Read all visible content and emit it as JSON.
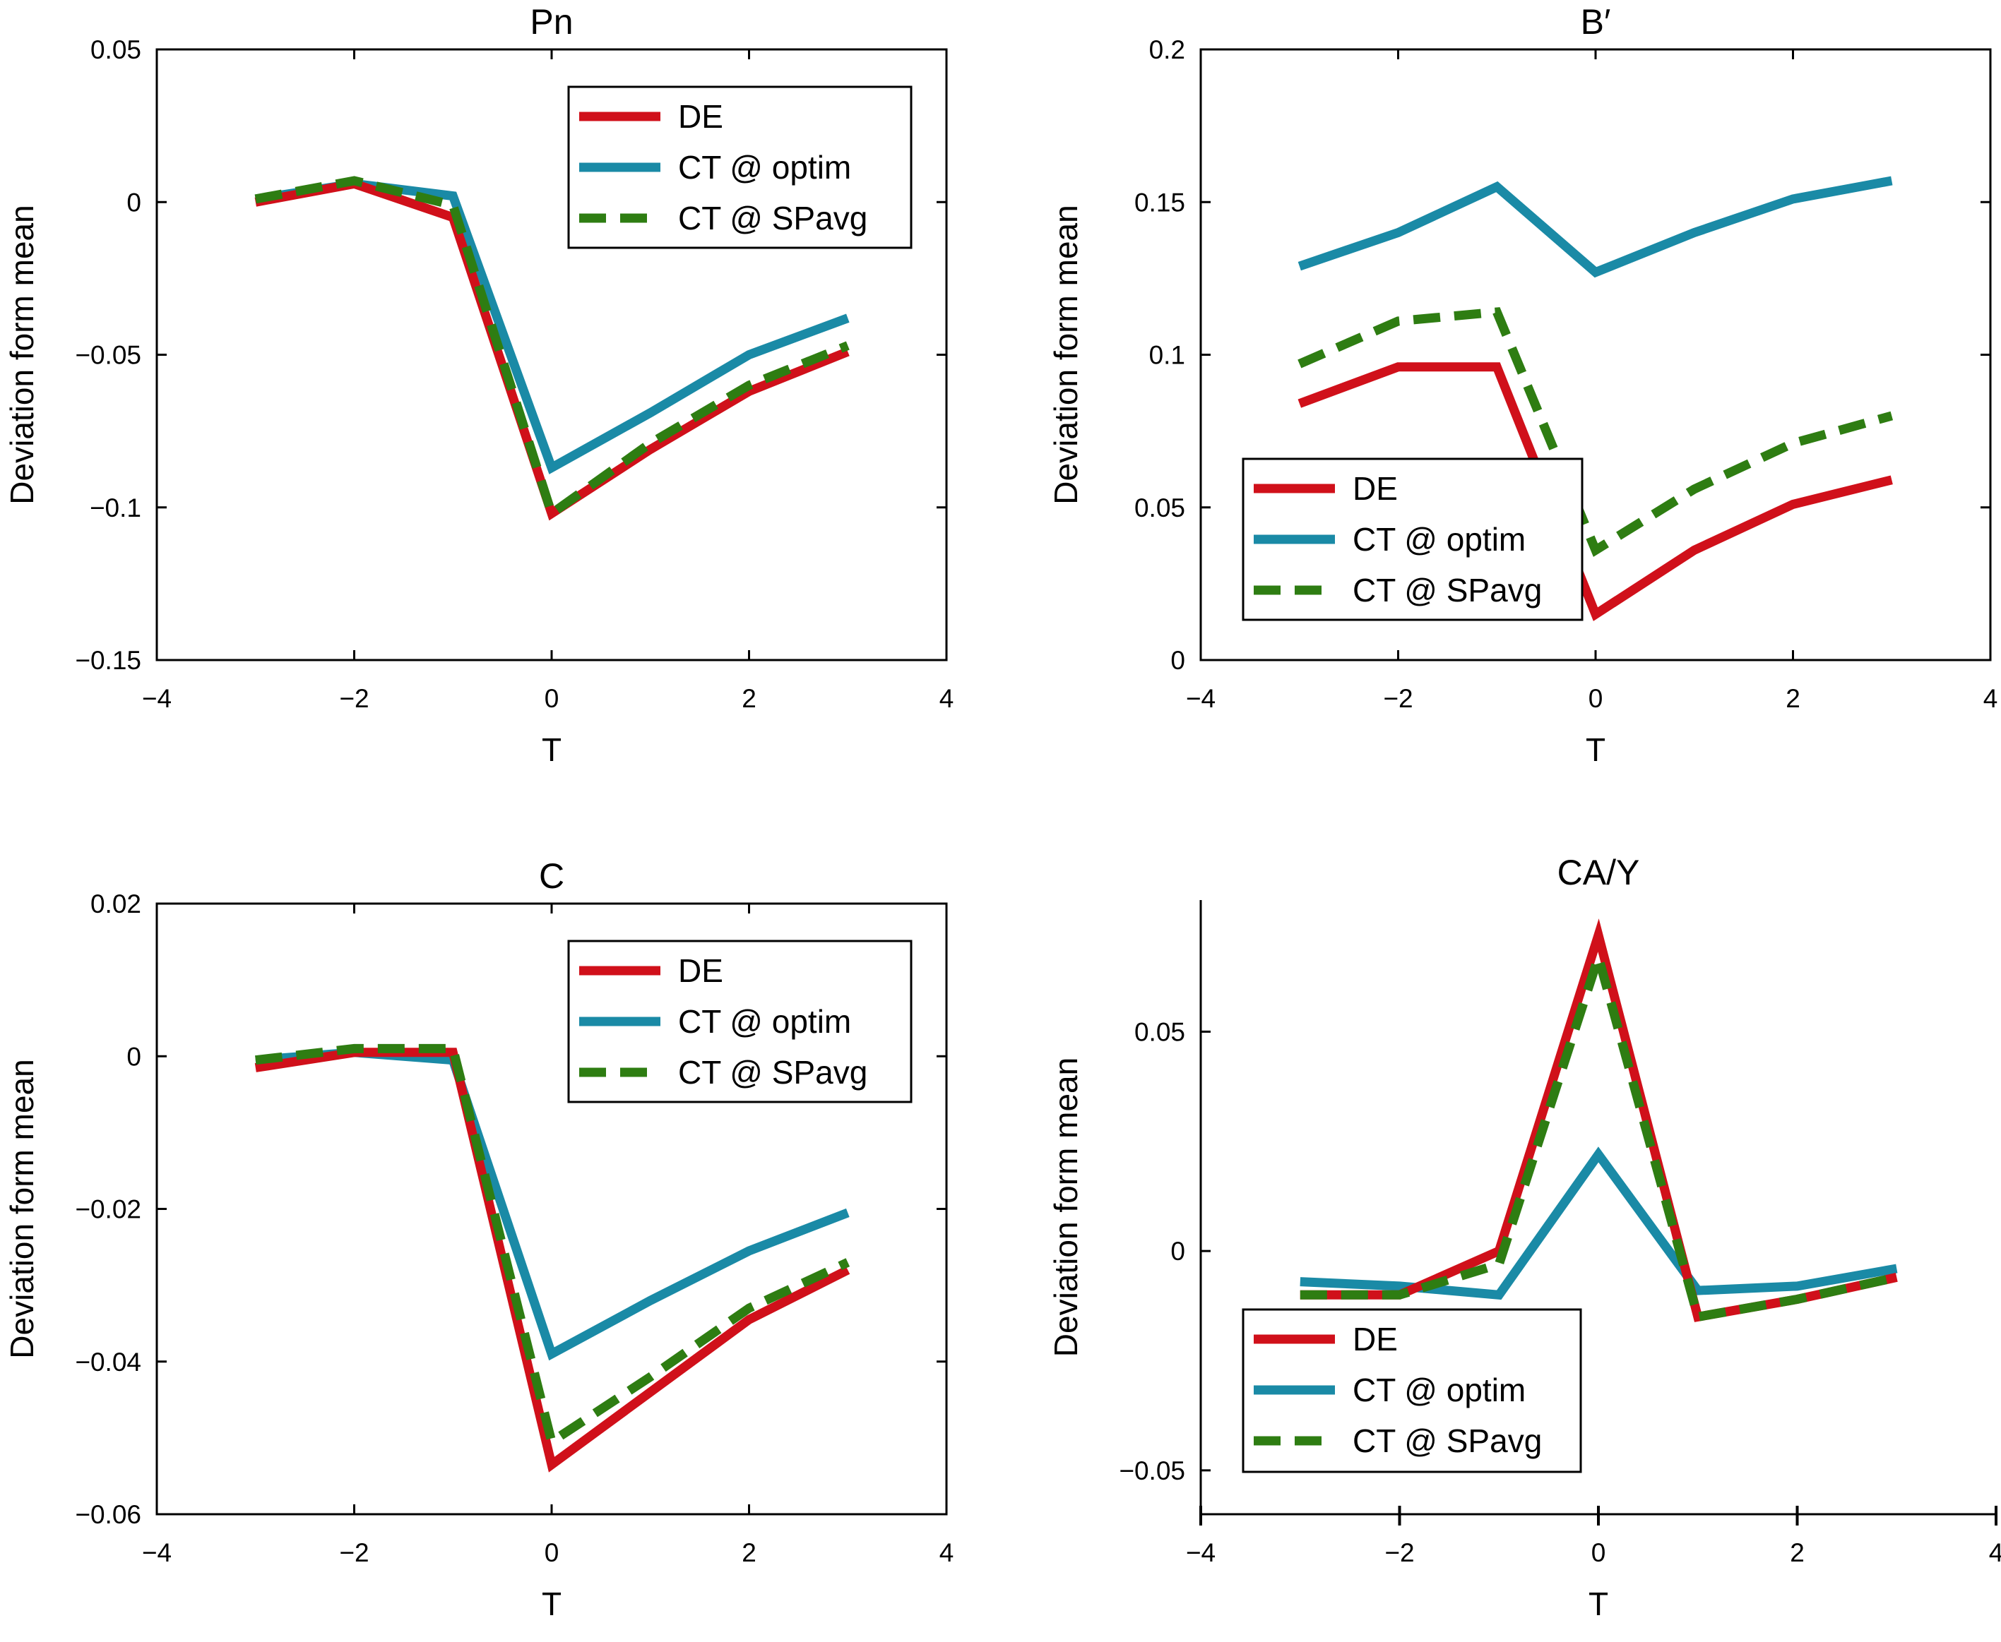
{
  "figure": {
    "ylabel": "Deviation form mean",
    "xlabel": "T",
    "x_ticks": [
      "−4",
      "−2",
      "0",
      "2",
      "4"
    ],
    "legend": [
      "DE",
      "CT @ optim",
      "CT @ SPavg"
    ]
  },
  "colors": {
    "DE": "#d0101a",
    "CT @ optim": "#1a8aa6",
    "CT @ SPavg": "#2e7d12"
  },
  "chart_data": [
    {
      "type": "line",
      "title": "Pn",
      "xlabel": "T",
      "ylabel": "Deviation form mean",
      "xlim": [
        -4,
        4
      ],
      "ylim": [
        -0.15,
        0.05
      ],
      "y_ticks": [
        "−0.15",
        "−0.1",
        "−0.05",
        "0",
        "0.05"
      ],
      "legend_position": "top-right",
      "x": [
        -3,
        -2,
        -1,
        0,
        1,
        2,
        3
      ],
      "series": [
        {
          "name": "DE",
          "style": "solid",
          "values": [
            0.0,
            0.006,
            -0.005,
            -0.102,
            -0.081,
            -0.062,
            -0.049
          ]
        },
        {
          "name": "CT @ optim",
          "style": "solid",
          "values": [
            0.001,
            0.006,
            0.002,
            -0.087,
            -0.069,
            -0.05,
            -0.038
          ]
        },
        {
          "name": "CT @ SPavg",
          "style": "dashed",
          "values": [
            0.001,
            0.007,
            -0.001,
            -0.102,
            -0.079,
            -0.06,
            -0.047
          ]
        }
      ]
    },
    {
      "type": "line",
      "title": "B′",
      "xlabel": "T",
      "ylabel": "Deviation form mean",
      "xlim": [
        -4,
        4
      ],
      "ylim": [
        0,
        0.2
      ],
      "y_ticks": [
        "0",
        "0.05",
        "0.1",
        "0.15",
        "0.2"
      ],
      "legend_position": "bottom-left",
      "x": [
        -3,
        -2,
        -1,
        0,
        1,
        2,
        3
      ],
      "series": [
        {
          "name": "DE",
          "style": "solid",
          "values": [
            0.084,
            0.096,
            0.096,
            0.015,
            0.036,
            0.051,
            0.059
          ]
        },
        {
          "name": "CT @ optim",
          "style": "solid",
          "values": [
            0.129,
            0.14,
            0.155,
            0.127,
            0.14,
            0.151,
            0.157
          ]
        },
        {
          "name": "CT @ SPavg",
          "style": "dashed",
          "values": [
            0.097,
            0.111,
            0.114,
            0.036,
            0.056,
            0.071,
            0.08
          ]
        }
      ]
    },
    {
      "type": "line",
      "title": "C",
      "xlabel": "T",
      "ylabel": "Deviation form mean",
      "xlim": [
        -4,
        4
      ],
      "ylim": [
        -0.06,
        0.02
      ],
      "y_ticks": [
        "−0.06",
        "−0.04",
        "−0.02",
        "0",
        "0.02"
      ],
      "legend_position": "top-right",
      "x": [
        -3,
        -2,
        -1,
        0,
        1,
        2,
        3
      ],
      "series": [
        {
          "name": "DE",
          "style": "solid",
          "values": [
            -0.0015,
            0.0005,
            0.0005,
            -0.0535,
            -0.044,
            -0.0345,
            -0.028
          ]
        },
        {
          "name": "CT @ optim",
          "style": "solid",
          "values": [
            -0.0005,
            0.0005,
            -0.0005,
            -0.039,
            -0.032,
            -0.0255,
            -0.0205
          ]
        },
        {
          "name": "CT @ SPavg",
          "style": "dashed",
          "values": [
            -0.0005,
            0.001,
            0.001,
            -0.0505,
            -0.042,
            -0.033,
            -0.027
          ]
        }
      ]
    },
    {
      "type": "line",
      "title": "CA/Y",
      "xlabel": "T",
      "ylabel": "Deviation form mean",
      "xlim": [
        -4,
        4
      ],
      "ylim": [
        -0.06,
        0.08
      ],
      "y_ticks": [
        "−0.05",
        "0",
        "0.05"
      ],
      "legend_position": "bottom-left",
      "x": [
        -3,
        -2,
        -1,
        0,
        1,
        2,
        3
      ],
      "series": [
        {
          "name": "DE",
          "style": "solid",
          "values": [
            -0.01,
            -0.01,
            0.0,
            0.072,
            -0.015,
            -0.011,
            -0.006
          ]
        },
        {
          "name": "CT @ optim",
          "style": "solid",
          "values": [
            -0.007,
            -0.008,
            -0.01,
            0.022,
            -0.009,
            -0.008,
            -0.004
          ]
        },
        {
          "name": "CT @ SPavg",
          "style": "dashed",
          "values": [
            -0.01,
            -0.01,
            -0.003,
            0.067,
            -0.015,
            -0.011,
            -0.006
          ]
        }
      ]
    }
  ]
}
